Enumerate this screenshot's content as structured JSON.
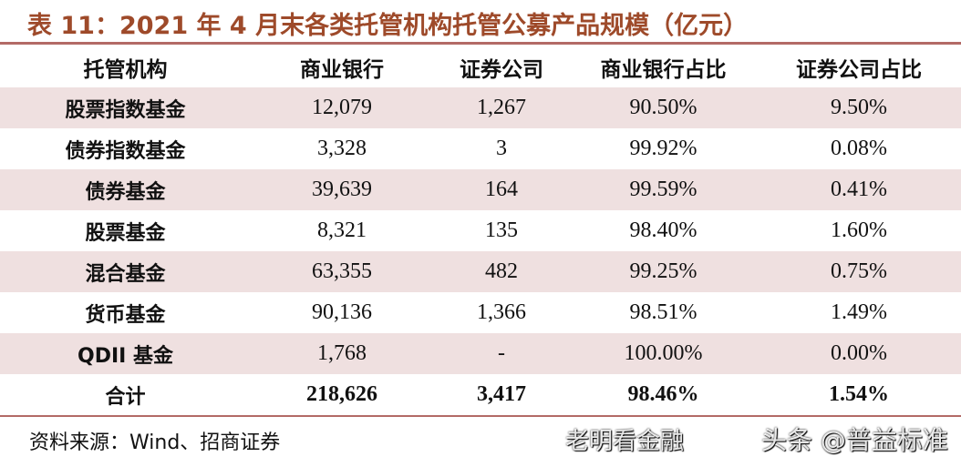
{
  "title": "表 11：2021 年 4 月末各类托管机构托管公募产品规模（亿元）",
  "headers": [
    "托管机构",
    "商业银行",
    "证券公司",
    "商业银行占比",
    "证券公司占比"
  ],
  "rows": [
    [
      "股票指数基金",
      "12,079",
      "1,267",
      "90.50%",
      "9.50%"
    ],
    [
      "债券指数基金",
      "3,328",
      "3",
      "99.92%",
      "0.08%"
    ],
    [
      "债券基金",
      "39,639",
      "164",
      "99.59%",
      "0.41%"
    ],
    [
      "股票基金",
      "8,321",
      "135",
      "98.40%",
      "1.60%"
    ],
    [
      "混合基金",
      "63,355",
      "482",
      "99.25%",
      "0.75%"
    ],
    [
      "货币基金",
      "90,136",
      "1,366",
      "98.51%",
      "1.49%"
    ],
    [
      "QDII 基金",
      "1,768",
      "-",
      "100.00%",
      "0.00%"
    ],
    [
      "合计",
      "218,626",
      "3,417",
      "98.46%",
      "1.54%"
    ]
  ],
  "source": "资料来源：Wind、招商证券",
  "watermarks": [
    "老明看金融",
    "头条 @普益标准"
  ],
  "colors": {
    "title": "#9e4a2a",
    "rule": "#b36a66",
    "shade": "#efe0e0"
  }
}
